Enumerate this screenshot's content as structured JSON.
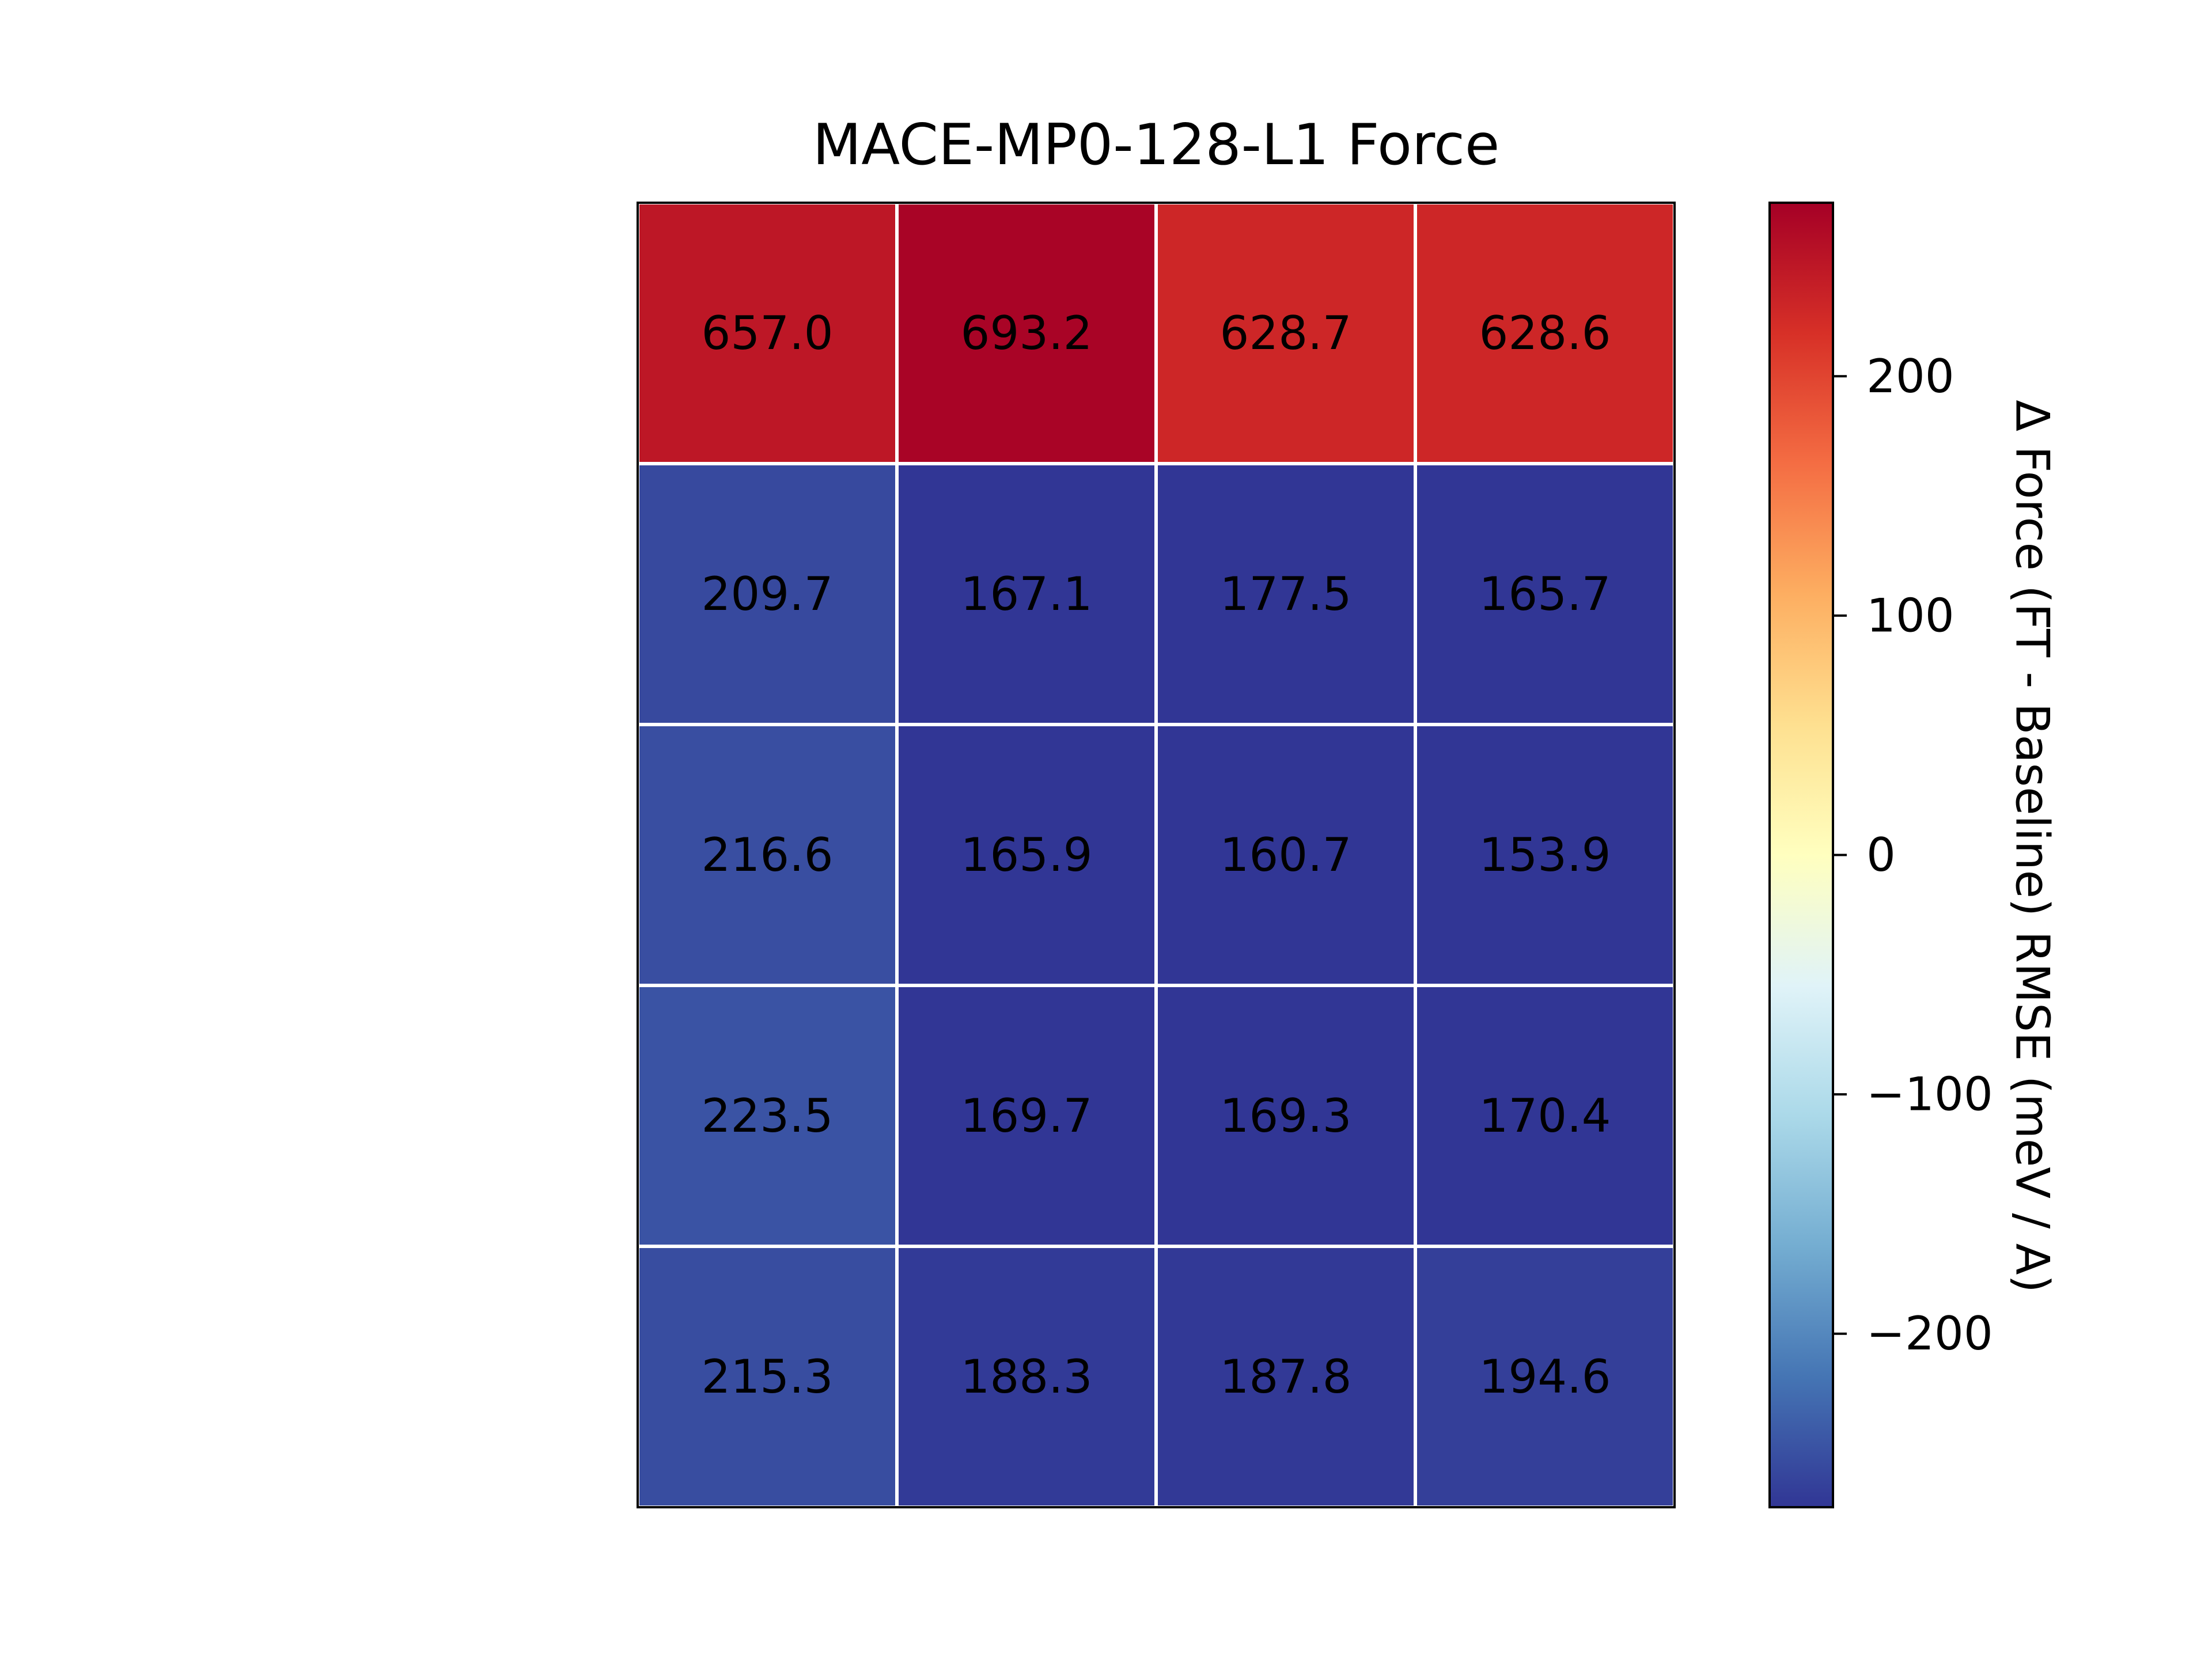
{
  "chart_data": {
    "type": "heatmap",
    "title": "MACE-MP0-128-L1 Force",
    "xlabel": "",
    "ylabel": "",
    "rows": 5,
    "columns": 4,
    "values": [
      [
        657.0,
        693.2,
        628.7,
        628.6
      ],
      [
        209.7,
        167.1,
        177.5,
        165.7
      ],
      [
        216.6,
        165.9,
        160.7,
        153.9
      ],
      [
        223.5,
        169.7,
        169.3,
        170.4
      ],
      [
        215.3,
        188.3,
        187.8,
        194.6
      ]
    ],
    "cell_labels": [
      [
        "657.0",
        "693.2",
        "628.7",
        "628.6"
      ],
      [
        "209.7",
        "167.1",
        "177.5",
        "165.7"
      ],
      [
        "216.6",
        "165.9",
        "160.7",
        "153.9"
      ],
      [
        "223.5",
        "169.7",
        "169.3",
        "170.4"
      ],
      [
        "215.3",
        "188.3",
        "187.8",
        "194.6"
      ]
    ],
    "color_values": [
      [
        246,
        268,
        229,
        229
      ],
      [
        -256,
        -282,
        -276,
        -283
      ],
      [
        -252,
        -283,
        -286,
        -290
      ],
      [
        -247,
        -280,
        -281,
        -280
      ],
      [
        -253,
        -269,
        -270,
        -265
      ]
    ],
    "colormap": "RdYlBu_r",
    "colormap_stops": [
      "#313695",
      "#4575b4",
      "#74add1",
      "#abd9e9",
      "#e0f3f8",
      "#ffffbf",
      "#fee090",
      "#fdae61",
      "#f46d43",
      "#d73027",
      "#a50026"
    ],
    "colorbar": {
      "label": "Δ Force (FT - Baseline) RMSE (meV / A)",
      "range": [
        -272.5,
        272.5
      ],
      "ticks": [
        -200,
        -100,
        0,
        100,
        200
      ],
      "tick_labels": [
        "−200",
        "−100",
        "0",
        "100",
        "200"
      ]
    },
    "grid": false,
    "axes_visible": false
  }
}
